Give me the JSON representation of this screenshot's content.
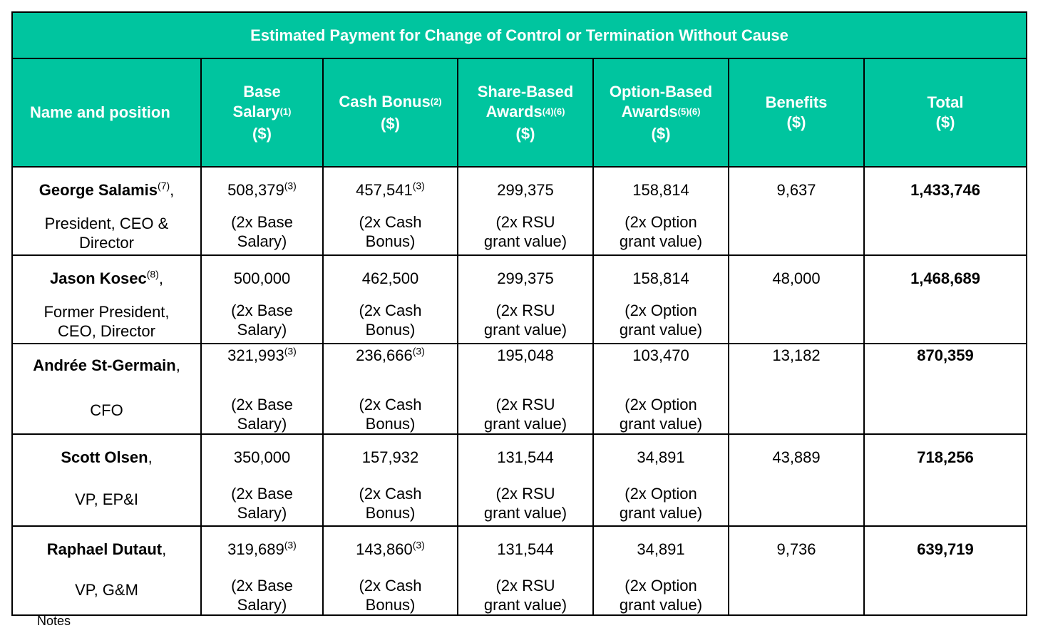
{
  "title": "Estimated Payment for Change of Control or Termination Without Cause",
  "headers": {
    "name": "Name and position",
    "base": {
      "l1": "Base",
      "l2": "Salary",
      "sup": "(1)",
      "l3": "($)"
    },
    "cash": {
      "l1": "Cash Bonus",
      "sup": "(2)",
      "l2": "($)"
    },
    "share": {
      "l1": "Share-Based",
      "l2": "Awards",
      "sup": "(4)(6)",
      "l3": "($)"
    },
    "option": {
      "l1": "Option-Based",
      "l2": "Awards",
      "sup": "(5)(6)",
      "l3": "($)"
    },
    "benefits": {
      "l1": "Benefits",
      "l2": "($)"
    },
    "total": {
      "l1": "Total",
      "l2": "($)"
    }
  },
  "rows": [
    {
      "name": "George Salamis",
      "name_sup": "(7)",
      "position_line1": "President, CEO &",
      "position_line2": "Director",
      "base": "508,379",
      "base_sup": "(3)",
      "cash": "457,541",
      "cash_sup": "(3)",
      "share": "299,375",
      "option": "158,814",
      "benefits": "9,637",
      "total": "1,433,746"
    },
    {
      "name": "Jason Kosec",
      "name_sup": "(8)",
      "position_line1": "Former President,",
      "position_line2": "CEO, Director",
      "base": "500,000",
      "base_sup": "",
      "cash": "462,500",
      "cash_sup": "",
      "share": "299,375",
      "option": "158,814",
      "benefits": "48,000",
      "total": "1,468,689"
    },
    {
      "name": "Andrée St-Germain",
      "name_sup": "",
      "position_line1": "CFO",
      "position_line2": "",
      "base": "321,993",
      "base_sup": "(3)",
      "cash": "236,666",
      "cash_sup": "(3)",
      "share": "195,048",
      "option": "103,470",
      "benefits": "13,182",
      "total": "870,359"
    },
    {
      "name": "Scott Olsen",
      "name_sup": "",
      "position_line1": "VP, EP&I",
      "position_line2": "",
      "base": "350,000",
      "base_sup": "",
      "cash": "157,932",
      "cash_sup": "",
      "share": "131,544",
      "option": "34,891",
      "benefits": "43,889",
      "total": "718,256"
    },
    {
      "name": "Raphael Dutaut",
      "name_sup": "",
      "position_line1": "VP, G&M",
      "position_line2": "",
      "base": "319,689",
      "base_sup": "(3)",
      "cash": "143,860",
      "cash_sup": "(3)",
      "share": "131,544",
      "option": "34,891",
      "benefits": "9,736",
      "total": "639,719"
    }
  ],
  "notes": {
    "base_l1": "(2x Base",
    "base_l2": "Salary)",
    "cash_l1": "(2x Cash",
    "cash_l2": "Bonus)",
    "share_l1": "(2x RSU",
    "share_l2": "grant value)",
    "option_l1": "(2x Option",
    "option_l2": "grant value)"
  },
  "footer_text": "Notes"
}
